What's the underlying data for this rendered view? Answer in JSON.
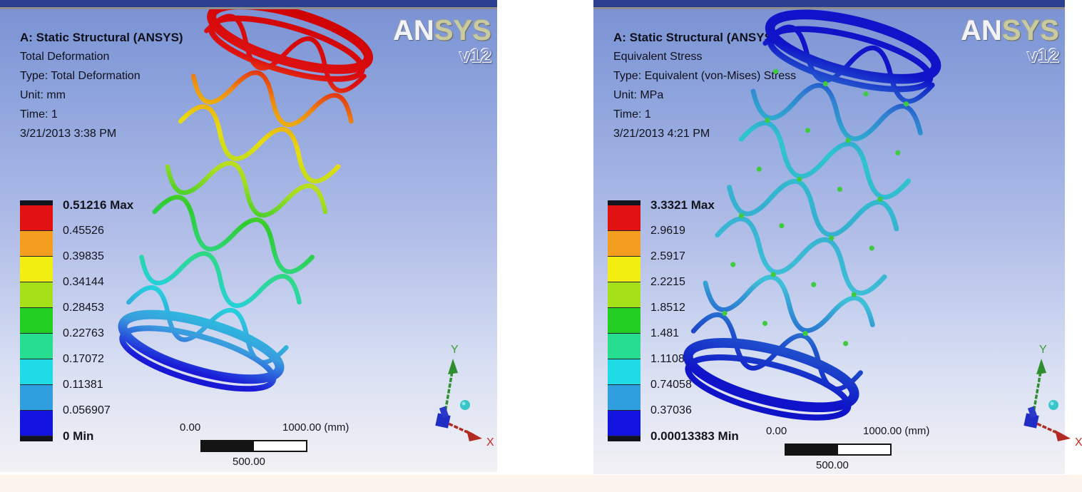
{
  "colors": {
    "top_strip": "#2a3f8d",
    "panel_border": "#8f8f8f",
    "legend_bands": [
      "#e31212",
      "#f59d1e",
      "#f2ee12",
      "#a5e018",
      "#22cf22",
      "#27dd8f",
      "#1fdbe5",
      "#2f9fe0",
      "#1414e0"
    ],
    "deformation_gradient": [
      [
        0,
        "#cc0000"
      ],
      [
        0.16,
        "#dd1111"
      ],
      [
        0.25,
        "#ee8811"
      ],
      [
        0.35,
        "#e8dd11"
      ],
      [
        0.45,
        "#a8dd22"
      ],
      [
        0.55,
        "#2ecc2e"
      ],
      [
        0.66,
        "#2ed98e"
      ],
      [
        0.76,
        "#25d0dd"
      ],
      [
        0.85,
        "#3a9ade"
      ],
      [
        0.93,
        "#1a1ad8"
      ],
      [
        1,
        "#1414cc"
      ]
    ],
    "stress_gradient": [
      [
        0,
        "#0f14c8"
      ],
      [
        0.12,
        "#0f14c8"
      ],
      [
        0.22,
        "#2f7fd0"
      ],
      [
        0.34,
        "#2fc4cf"
      ],
      [
        0.5,
        "#35b0d0"
      ],
      [
        0.66,
        "#3fc0d8"
      ],
      [
        0.79,
        "#2055cc"
      ],
      [
        0.9,
        "#0f14c8"
      ],
      [
        1,
        "#0f14c8"
      ]
    ],
    "stress_speckle": "#3ecb3e",
    "triad_x": "#c22b22",
    "triad_y": "#3aa03a"
  },
  "ansys_logo": {
    "an": "AN",
    "sys": "SYS",
    "version": "v12"
  },
  "deformation": {
    "title": "A: Static Structural (ANSYS)",
    "result": "Total Deformation",
    "type": "Type: Total Deformation",
    "unit": "Unit: mm",
    "time": "Time: 1",
    "timestamp": "3/21/2013 3:38 PM",
    "legend_labels": [
      "0.51216 Max",
      "0.45526",
      "0.39835",
      "0.34144",
      "0.28453",
      "0.22763",
      "0.17072",
      "0.11381",
      "0.056907",
      "0 Min"
    ],
    "ruler": {
      "start": "0.00",
      "end": "1000.00 (mm)",
      "mid": "500.00"
    },
    "triad": {
      "x": "X",
      "y": "Y"
    }
  },
  "stress": {
    "title": "A: Static Structural (ANSYS)",
    "result": "Equivalent Stress",
    "type": "Type: Equivalent (von-Mises) Stress",
    "unit": "Unit: MPa",
    "time": "Time: 1",
    "timestamp": "3/21/2013 4:21 PM",
    "legend_labels": [
      "3.3321 Max",
      "2.9619",
      "2.5917",
      "2.2215",
      "1.8512",
      "1.481",
      "1.1108",
      "0.74058",
      "0.37036",
      "0.00013383 Min"
    ],
    "ruler": {
      "start": "0.00",
      "end": "1000.00 (mm)",
      "mid": "500.00"
    },
    "triad": {
      "x": "X",
      "y": "Y"
    }
  }
}
